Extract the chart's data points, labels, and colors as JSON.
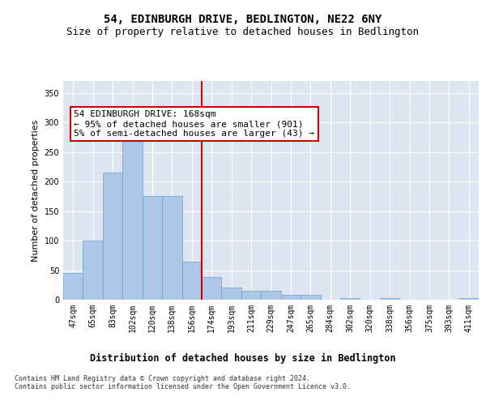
{
  "title": "54, EDINBURGH DRIVE, BEDLINGTON, NE22 6NY",
  "subtitle": "Size of property relative to detached houses in Bedlington",
  "xlabel": "Distribution of detached houses by size in Bedlington",
  "ylabel": "Number of detached properties",
  "categories": [
    "47sqm",
    "65sqm",
    "83sqm",
    "102sqm",
    "120sqm",
    "138sqm",
    "156sqm",
    "174sqm",
    "193sqm",
    "211sqm",
    "229sqm",
    "247sqm",
    "265sqm",
    "284sqm",
    "302sqm",
    "320sqm",
    "338sqm",
    "356sqm",
    "375sqm",
    "393sqm",
    "411sqm"
  ],
  "values": [
    45,
    100,
    215,
    270,
    175,
    175,
    65,
    38,
    20,
    15,
    15,
    8,
    8,
    0,
    3,
    0,
    3,
    0,
    0,
    0,
    3
  ],
  "bar_color": "#aec6e8",
  "bar_edgecolor": "#6a9fd0",
  "vline_color": "#cc0000",
  "annotation_text": "54 EDINBURGH DRIVE: 168sqm\n← 95% of detached houses are smaller (901)\n5% of semi-detached houses are larger (43) →",
  "annotation_box_edgecolor": "#cc0000",
  "annotation_box_facecolor": "#ffffff",
  "background_color": "#dde6f0",
  "grid_color": "#ffffff",
  "footer_text": "Contains HM Land Registry data © Crown copyright and database right 2024.\nContains public sector information licensed under the Open Government Licence v3.0.",
  "title_fontsize": 10,
  "subtitle_fontsize": 9,
  "ylabel_fontsize": 8,
  "xlabel_fontsize": 8.5,
  "tick_fontsize": 7,
  "annotation_fontsize": 8,
  "footer_fontsize": 6,
  "ylim": [
    0,
    370
  ]
}
